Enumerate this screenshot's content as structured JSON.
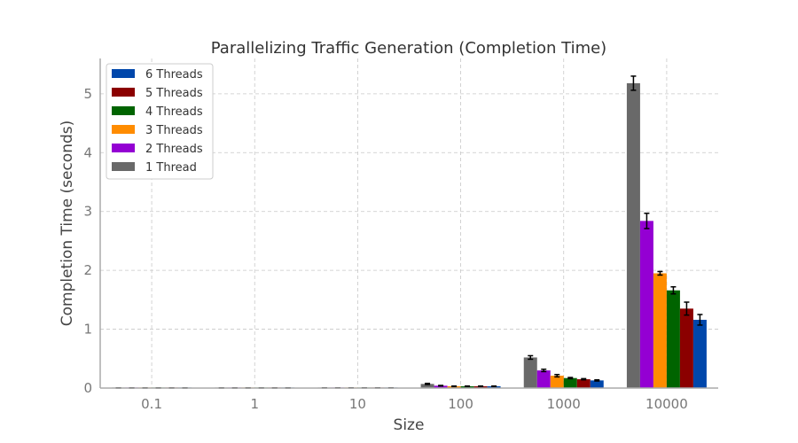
{
  "chart_data": {
    "type": "bar",
    "title": "Parallelizing Traffic Generation (Completion Time)",
    "xlabel": "Size",
    "ylabel": "Completion Time (seconds)",
    "categories": [
      "0.1",
      "1",
      "10",
      "100",
      "1000",
      "10000"
    ],
    "ylim": [
      0,
      5.6
    ],
    "yticks": [
      0,
      1,
      2,
      3,
      4,
      5
    ],
    "grid": true,
    "legend_position": "top-left",
    "series": [
      {
        "name": "1 Thread",
        "color": "#696969",
        "values": [
          0.002,
          0.002,
          0.003,
          0.07,
          0.52,
          5.18
        ],
        "errors": [
          0.001,
          0.001,
          0.001,
          0.01,
          0.03,
          0.12
        ]
      },
      {
        "name": "2 Threads",
        "color": "#9400d3",
        "values": [
          0.002,
          0.002,
          0.003,
          0.04,
          0.3,
          2.84
        ],
        "errors": [
          0.001,
          0.001,
          0.001,
          0.005,
          0.02,
          0.13
        ]
      },
      {
        "name": "3 Threads",
        "color": "#ff8c00",
        "values": [
          0.002,
          0.002,
          0.003,
          0.03,
          0.21,
          1.95
        ],
        "errors": [
          0.001,
          0.001,
          0.001,
          0.005,
          0.02,
          0.03
        ]
      },
      {
        "name": "4 Threads",
        "color": "#006400",
        "values": [
          0.002,
          0.002,
          0.003,
          0.03,
          0.17,
          1.66
        ],
        "errors": [
          0.001,
          0.001,
          0.001,
          0.005,
          0.01,
          0.06
        ]
      },
      {
        "name": "5 Threads",
        "color": "#8b0000",
        "values": [
          0.002,
          0.002,
          0.003,
          0.03,
          0.15,
          1.35
        ],
        "errors": [
          0.001,
          0.001,
          0.001,
          0.005,
          0.01,
          0.11
        ]
      },
      {
        "name": "6 Threads",
        "color": "#0047ab",
        "values": [
          0.002,
          0.002,
          0.003,
          0.03,
          0.13,
          1.16
        ],
        "errors": [
          0.001,
          0.001,
          0.001,
          0.005,
          0.01,
          0.09
        ]
      }
    ],
    "legend_order": [
      "6 Threads",
      "5 Threads",
      "4 Threads",
      "3 Threads",
      "2 Threads",
      "1 Thread"
    ]
  }
}
